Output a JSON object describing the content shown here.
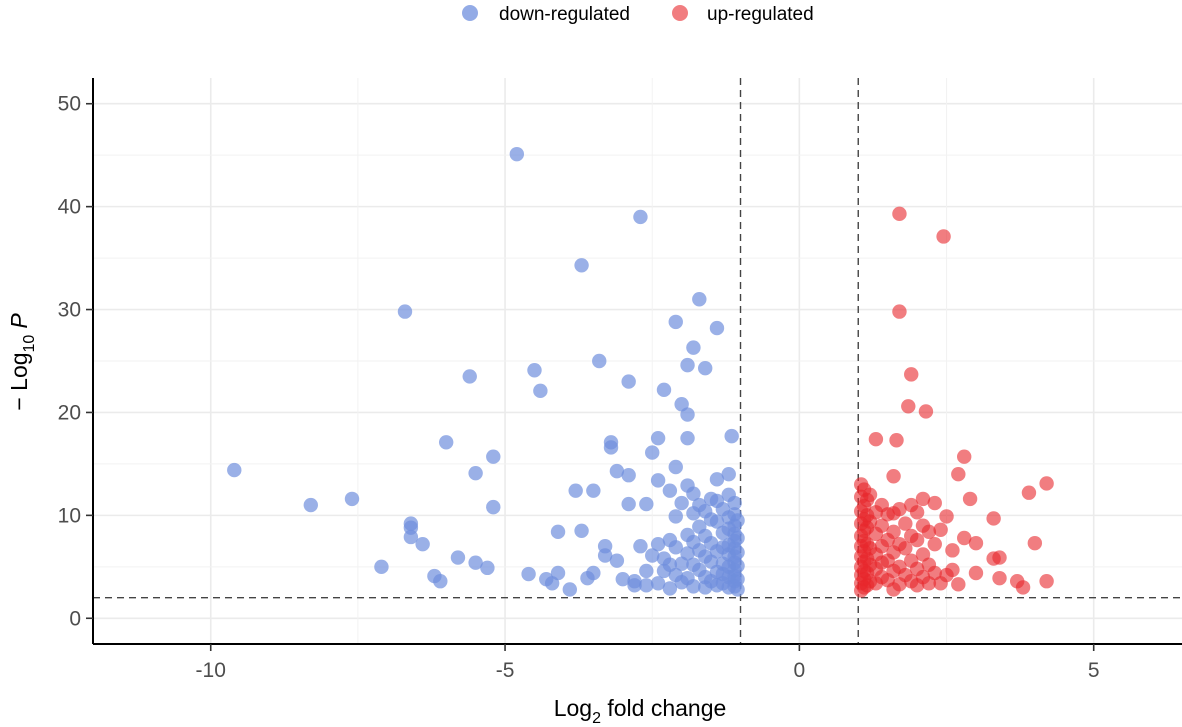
{
  "chart_data": {
    "type": "scatter",
    "title": "",
    "xlabel": {
      "base": "Log",
      "sub": "2",
      "rest": " fold change"
    },
    "ylabel": {
      "prefix": "− Log",
      "sub": "10",
      "italic": "P"
    },
    "xlim": [
      -12,
      6.5
    ],
    "ylim": [
      -2.5,
      52.5
    ],
    "xticks": [
      -10,
      -5,
      0,
      5
    ],
    "xtick_labels": [
      "-10",
      "-5",
      "0",
      "5"
    ],
    "yticks": [
      0,
      10,
      20,
      30,
      40,
      50
    ],
    "ytick_labels": [
      "0",
      "10",
      "20",
      "30",
      "40",
      "50"
    ],
    "grid": true,
    "legend_position": "top",
    "thresholds": {
      "x": [
        -1,
        1
      ],
      "y": 2
    },
    "series": [
      {
        "name": "down-regulated",
        "color": "#6f8fdd",
        "points": [
          [
            -9.6,
            14.4
          ],
          [
            -8.3,
            11.0
          ],
          [
            -7.6,
            11.6
          ],
          [
            -7.1,
            5.0
          ],
          [
            -6.7,
            29.8
          ],
          [
            -6.6,
            9.2
          ],
          [
            -6.6,
            8.8
          ],
          [
            -6.6,
            7.9
          ],
          [
            -6.4,
            7.2
          ],
          [
            -6.2,
            4.1
          ],
          [
            -6.1,
            3.6
          ],
          [
            -6.0,
            17.1
          ],
          [
            -5.8,
            5.9
          ],
          [
            -5.6,
            23.5
          ],
          [
            -5.5,
            14.1
          ],
          [
            -5.5,
            5.4
          ],
          [
            -5.3,
            4.9
          ],
          [
            -5.2,
            15.7
          ],
          [
            -5.2,
            10.8
          ],
          [
            -4.8,
            45.1
          ],
          [
            -4.6,
            4.3
          ],
          [
            -4.5,
            24.1
          ],
          [
            -4.4,
            22.1
          ],
          [
            -4.3,
            3.8
          ],
          [
            -4.2,
            3.4
          ],
          [
            -4.1,
            8.4
          ],
          [
            -4.1,
            4.4
          ],
          [
            -3.9,
            2.8
          ],
          [
            -3.8,
            12.4
          ],
          [
            -3.7,
            34.3
          ],
          [
            -3.7,
            8.5
          ],
          [
            -3.6,
            3.9
          ],
          [
            -3.5,
            12.4
          ],
          [
            -3.5,
            4.4
          ],
          [
            -3.4,
            25.0
          ],
          [
            -3.3,
            7.0
          ],
          [
            -3.3,
            6.1
          ],
          [
            -3.2,
            17.1
          ],
          [
            -3.2,
            16.6
          ],
          [
            -3.1,
            14.3
          ],
          [
            -3.1,
            5.6
          ],
          [
            -3.0,
            3.8
          ],
          [
            -2.9,
            23.0
          ],
          [
            -2.9,
            13.9
          ],
          [
            -2.9,
            11.1
          ],
          [
            -2.8,
            3.6
          ],
          [
            -2.8,
            3.2
          ],
          [
            -2.7,
            39.0
          ],
          [
            -2.7,
            7.0
          ],
          [
            -2.6,
            11.1
          ],
          [
            -2.6,
            4.6
          ],
          [
            -2.6,
            3.2
          ],
          [
            -2.5,
            16.1
          ],
          [
            -2.5,
            6.1
          ],
          [
            -2.4,
            17.5
          ],
          [
            -2.4,
            13.4
          ],
          [
            -2.4,
            7.2
          ],
          [
            -2.4,
            3.4
          ],
          [
            -2.3,
            22.2
          ],
          [
            -2.3,
            5.8
          ],
          [
            -2.3,
            4.6
          ],
          [
            -2.2,
            12.4
          ],
          [
            -2.2,
            7.6
          ],
          [
            -2.2,
            5.2
          ],
          [
            -2.2,
            2.9
          ],
          [
            -2.1,
            28.8
          ],
          [
            -2.1,
            14.7
          ],
          [
            -2.1,
            9.9
          ],
          [
            -2.1,
            6.9
          ],
          [
            -2.1,
            4.2
          ],
          [
            -2.0,
            20.8
          ],
          [
            -2.0,
            11.2
          ],
          [
            -2.0,
            5.3
          ],
          [
            -2.0,
            3.5
          ],
          [
            -1.9,
            24.6
          ],
          [
            -1.9,
            19.8
          ],
          [
            -1.9,
            17.5
          ],
          [
            -1.9,
            12.9
          ],
          [
            -1.9,
            8.1
          ],
          [
            -1.9,
            6.3
          ],
          [
            -1.9,
            3.9
          ],
          [
            -1.8,
            26.3
          ],
          [
            -1.8,
            12.1
          ],
          [
            -1.8,
            10.2
          ],
          [
            -1.8,
            7.4
          ],
          [
            -1.8,
            5.2
          ],
          [
            -1.8,
            3.1
          ],
          [
            -1.7,
            31.0
          ],
          [
            -1.7,
            11.0
          ],
          [
            -1.7,
            8.9
          ],
          [
            -1.7,
            6.6
          ],
          [
            -1.7,
            4.7
          ],
          [
            -1.6,
            24.3
          ],
          [
            -1.6,
            10.4
          ],
          [
            -1.6,
            8.0
          ],
          [
            -1.6,
            6.0
          ],
          [
            -1.6,
            4.0
          ],
          [
            -1.6,
            3.0
          ],
          [
            -1.5,
            11.6
          ],
          [
            -1.5,
            9.6
          ],
          [
            -1.5,
            7.3
          ],
          [
            -1.5,
            5.5
          ],
          [
            -1.5,
            3.6
          ],
          [
            -1.4,
            28.2
          ],
          [
            -1.4,
            13.5
          ],
          [
            -1.4,
            11.4
          ],
          [
            -1.4,
            9.4
          ],
          [
            -1.4,
            6.5
          ],
          [
            -1.4,
            4.5
          ],
          [
            -1.4,
            3.2
          ],
          [
            -1.3,
            10.6
          ],
          [
            -1.3,
            8.3
          ],
          [
            -1.3,
            6.9
          ],
          [
            -1.3,
            5.3
          ],
          [
            -1.3,
            4.3
          ],
          [
            -1.3,
            3.4
          ],
          [
            -1.2,
            14.0
          ],
          [
            -1.2,
            12.0
          ],
          [
            -1.2,
            9.8
          ],
          [
            -1.2,
            8.7
          ],
          [
            -1.2,
            7.1
          ],
          [
            -1.2,
            6.2
          ],
          [
            -1.2,
            5.0
          ],
          [
            -1.2,
            4.0
          ],
          [
            -1.2,
            3.0
          ],
          [
            -1.15,
            17.7
          ],
          [
            -1.1,
            11.2
          ],
          [
            -1.1,
            10.1
          ],
          [
            -1.1,
            9.0
          ],
          [
            -1.1,
            8.2
          ],
          [
            -1.1,
            7.5
          ],
          [
            -1.1,
            6.8
          ],
          [
            -1.1,
            6.0
          ],
          [
            -1.1,
            5.4
          ],
          [
            -1.1,
            4.7
          ],
          [
            -1.1,
            4.1
          ],
          [
            -1.1,
            3.6
          ],
          [
            -1.1,
            3.1
          ],
          [
            -1.05,
            9.5
          ],
          [
            -1.05,
            7.8
          ],
          [
            -1.05,
            6.4
          ],
          [
            -1.05,
            5.1
          ],
          [
            -1.05,
            3.8
          ],
          [
            -1.05,
            2.8
          ]
        ]
      },
      {
        "name": "up-regulated",
        "color": "#e8262b",
        "points": [
          [
            1.05,
            13.0
          ],
          [
            1.05,
            11.8
          ],
          [
            1.05,
            10.4
          ],
          [
            1.05,
            9.2
          ],
          [
            1.05,
            8.0
          ],
          [
            1.05,
            7.0
          ],
          [
            1.05,
            6.0
          ],
          [
            1.05,
            5.0
          ],
          [
            1.05,
            4.2
          ],
          [
            1.05,
            3.4
          ],
          [
            1.05,
            2.7
          ],
          [
            1.1,
            12.5
          ],
          [
            1.1,
            10.9
          ],
          [
            1.1,
            9.6
          ],
          [
            1.1,
            8.5
          ],
          [
            1.1,
            7.5
          ],
          [
            1.1,
            6.5
          ],
          [
            1.1,
            5.5
          ],
          [
            1.1,
            4.6
          ],
          [
            1.1,
            3.8
          ],
          [
            1.1,
            3.0
          ],
          [
            1.15,
            11.5
          ],
          [
            1.15,
            10.0
          ],
          [
            1.15,
            8.8
          ],
          [
            1.15,
            7.2
          ],
          [
            1.15,
            5.8
          ],
          [
            1.15,
            4.4
          ],
          [
            1.15,
            3.2
          ],
          [
            1.2,
            12.0
          ],
          [
            1.2,
            9.4
          ],
          [
            1.2,
            6.8
          ],
          [
            1.2,
            5.2
          ],
          [
            1.2,
            3.6
          ],
          [
            1.3,
            17.4
          ],
          [
            1.3,
            10.3
          ],
          [
            1.3,
            8.2
          ],
          [
            1.3,
            6.2
          ],
          [
            1.3,
            4.8
          ],
          [
            1.3,
            3.4
          ],
          [
            1.4,
            11.0
          ],
          [
            1.4,
            9.0
          ],
          [
            1.4,
            7.0
          ],
          [
            1.4,
            5.4
          ],
          [
            1.4,
            4.0
          ],
          [
            1.5,
            10.1
          ],
          [
            1.5,
            7.6
          ],
          [
            1.5,
            5.6
          ],
          [
            1.5,
            3.7
          ],
          [
            1.6,
            13.8
          ],
          [
            1.6,
            10.2
          ],
          [
            1.6,
            8.4
          ],
          [
            1.6,
            6.4
          ],
          [
            1.6,
            4.6
          ],
          [
            1.6,
            2.8
          ],
          [
            1.65,
            17.3
          ],
          [
            1.7,
            39.3
          ],
          [
            1.7,
            29.8
          ],
          [
            1.7,
            10.6
          ],
          [
            1.7,
            7.2
          ],
          [
            1.7,
            5.0
          ],
          [
            1.7,
            3.3
          ],
          [
            1.8,
            9.2
          ],
          [
            1.8,
            6.8
          ],
          [
            1.8,
            4.2
          ],
          [
            1.85,
            20.6
          ],
          [
            1.9,
            23.7
          ],
          [
            1.9,
            11.0
          ],
          [
            1.9,
            8.0
          ],
          [
            1.9,
            5.6
          ],
          [
            1.9,
            3.6
          ],
          [
            2.0,
            10.3
          ],
          [
            2.0,
            7.6
          ],
          [
            2.0,
            4.8
          ],
          [
            2.0,
            3.2
          ],
          [
            2.1,
            11.6
          ],
          [
            2.1,
            9.0
          ],
          [
            2.1,
            6.2
          ],
          [
            2.1,
            4.0
          ],
          [
            2.15,
            20.1
          ],
          [
            2.2,
            8.4
          ],
          [
            2.2,
            5.2
          ],
          [
            2.2,
            3.4
          ],
          [
            2.3,
            11.2
          ],
          [
            2.3,
            7.2
          ],
          [
            2.3,
            4.4
          ],
          [
            2.4,
            8.6
          ],
          [
            2.4,
            3.4
          ],
          [
            2.45,
            37.1
          ],
          [
            2.5,
            9.9
          ],
          [
            2.5,
            4.2
          ],
          [
            2.6,
            6.6
          ],
          [
            2.6,
            4.7
          ],
          [
            2.7,
            14.0
          ],
          [
            2.7,
            3.3
          ],
          [
            2.8,
            15.7
          ],
          [
            2.8,
            7.8
          ],
          [
            2.9,
            11.6
          ],
          [
            3.0,
            7.3
          ],
          [
            3.0,
            4.4
          ],
          [
            3.3,
            9.7
          ],
          [
            3.3,
            5.8
          ],
          [
            3.4,
            5.9
          ],
          [
            3.4,
            3.9
          ],
          [
            3.7,
            3.6
          ],
          [
            3.8,
            3.0
          ],
          [
            3.9,
            12.2
          ],
          [
            4.0,
            7.3
          ],
          [
            4.2,
            13.1
          ],
          [
            4.2,
            3.6
          ]
        ]
      }
    ]
  }
}
